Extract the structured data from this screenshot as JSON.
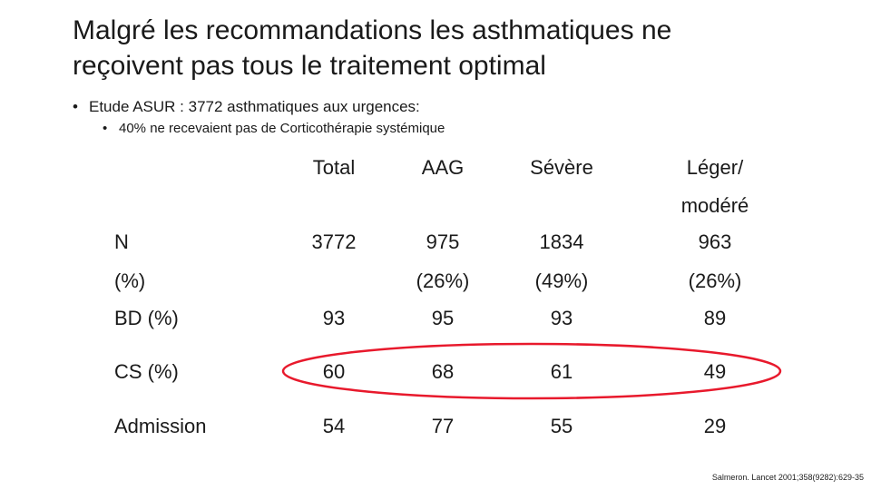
{
  "title": {
    "line1": "Malgré les recommandations les asthmatiques ne",
    "line2": "reçoivent pas tous le traitement optimal"
  },
  "bullets": {
    "level1": "Etude ASUR : 3772 asthmatiques aux urgences:",
    "level2": "40% ne recevaient pas de Corticothérapie systémique"
  },
  "table": {
    "headers": {
      "total": "Total",
      "aag": "AAG",
      "severe": "Sévère",
      "leger_line1": "Léger/",
      "leger_line2": "modéré"
    },
    "rows": {
      "n_label": "N",
      "pct_label": "(%)",
      "bd_label": "BD (%)",
      "cs_label": "CS (%)",
      "admission_label": "Admission"
    },
    "n": {
      "total": "3772",
      "aag": "975",
      "severe": "1834",
      "leger": "963"
    },
    "pct": {
      "aag": "(26%)",
      "severe": "(49%)",
      "leger": "(26%)"
    },
    "bd": {
      "total": "93",
      "aag": "95",
      "severe": "93",
      "leger": "89"
    },
    "cs": {
      "total": "60",
      "aag": "68",
      "severe": "61",
      "leger": "49"
    },
    "admission": {
      "total": "54",
      "aag": "77",
      "severe": "55",
      "leger": "29"
    }
  },
  "highlight": {
    "color": "#e8192c"
  },
  "citation": "Salmeron. Lancet 2001;358(9282):629-35"
}
